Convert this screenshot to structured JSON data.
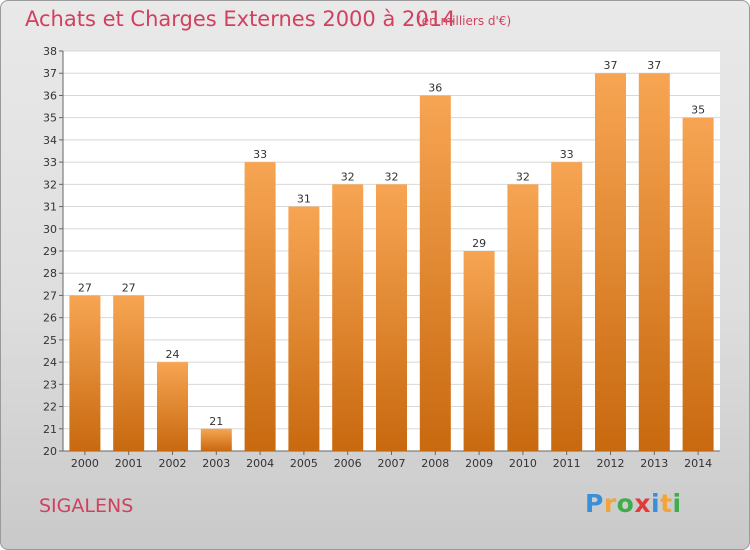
{
  "header": {
    "title": "Achats et Charges Externes 2000 à 2014",
    "subtitle": "(en milliers d'€)"
  },
  "footer": {
    "location": "SIGALENS",
    "logo_letters": [
      {
        "ch": "P",
        "color": "#3a8fd9"
      },
      {
        "ch": "r",
        "color": "#f2a33a"
      },
      {
        "ch": "o",
        "color": "#3fae49"
      },
      {
        "ch": "x",
        "color": "#e23b3b"
      },
      {
        "ch": "i",
        "color": "#3a8fd9"
      },
      {
        "ch": "t",
        "color": "#f2a33a"
      },
      {
        "ch": "i",
        "color": "#3fae49"
      }
    ]
  },
  "colors": {
    "accent": "#d1405e",
    "bar_light": "#f7a553",
    "bar_dark": "#c8690f"
  },
  "chart_data": {
    "type": "bar",
    "categories": [
      "2000",
      "2001",
      "2002",
      "2003",
      "2004",
      "2005",
      "2006",
      "2007",
      "2008",
      "2009",
      "2010",
      "2011",
      "2012",
      "2013",
      "2014"
    ],
    "values": [
      27,
      27,
      24,
      21,
      33,
      31,
      32,
      32,
      36,
      29,
      32,
      33,
      37,
      37,
      35
    ],
    "ylim": [
      20,
      38
    ],
    "yticks": [
      "20",
      "21",
      "22",
      "23",
      "24",
      "25",
      "26",
      "27",
      "28",
      "29",
      "30",
      "31",
      "32",
      "33",
      "34",
      "35",
      "36",
      "37",
      "38"
    ],
    "grid": true,
    "legend": "none"
  }
}
